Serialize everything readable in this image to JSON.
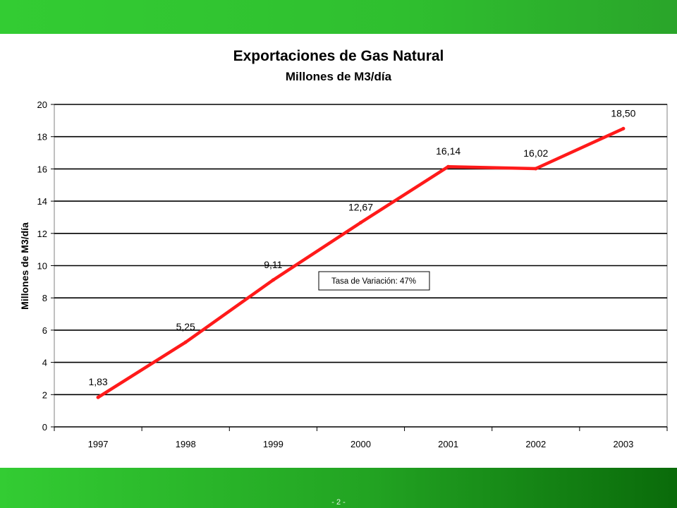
{
  "colors": {
    "top_bar": "#33cc33",
    "bottom_bar_dark": "#0a6b0a",
    "line": "#ff1a1a",
    "grid": "#000000"
  },
  "page_number": "- 2 -",
  "chart_data": {
    "type": "line",
    "title": "Exportaciones de Gas Natural",
    "subtitle": "Millones de M3/día",
    "ylabel": "Millones de M3/día",
    "xlabel": "",
    "categories": [
      "1997",
      "1998",
      "1999",
      "2000",
      "2001",
      "2002",
      "2003"
    ],
    "series": [
      {
        "values": [
          1.83,
          5.25,
          9.11,
          12.67,
          16.14,
          16.02,
          18.5
        ]
      }
    ],
    "data_labels": [
      "1,83",
      "5,25",
      "9,11",
      "12,67",
      "16,14",
      "16,02",
      "18,50"
    ],
    "ylim": [
      0,
      20
    ],
    "yticks": [
      "0",
      "2",
      "4",
      "6",
      "8",
      "10",
      "12",
      "14",
      "16",
      "18",
      "20"
    ],
    "grid": "horizontal",
    "annotation": "Tasa de Variación: 47%"
  }
}
